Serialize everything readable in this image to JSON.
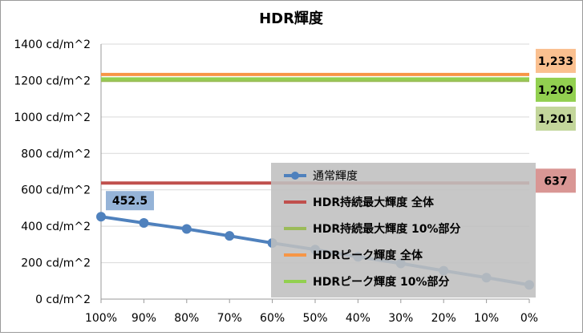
{
  "chart_data": {
    "type": "line",
    "title": "HDR輝度",
    "xlabel": "",
    "ylabel": "",
    "categories": [
      "100%",
      "90%",
      "80%",
      "70%",
      "60%",
      "50%",
      "40%",
      "30%",
      "20%",
      "10%",
      "0%"
    ],
    "y_ticks": [
      "0 cd/m^2",
      "200 cd/m^2",
      "400 cd/m^2",
      "600 cd/m^2",
      "800 cd/m^2",
      "1000 cd/m^2",
      "1200 cd/m^2",
      "1400 cd/m^2"
    ],
    "ylim": [
      0,
      1400
    ],
    "grid": true,
    "legend_position": "bottom-right",
    "series": [
      {
        "name": "通常輝度",
        "color": "#4f81bd",
        "marker": "circle",
        "values": [
          452.5,
          418,
          385,
          347,
          308,
          272,
          232,
          196,
          156,
          118,
          78
        ],
        "data_labels": [
          {
            "index": 0,
            "text": "452.5"
          }
        ]
      },
      {
        "name": "HDR持続最大輝度 全体",
        "color": "#c0504d",
        "marker": "none",
        "constant": 637,
        "data_label": "637"
      },
      {
        "name": "HDR持続最大輝度 10%部分",
        "color": "#9bbb59",
        "marker": "none",
        "constant": 1201,
        "data_label": "1,201"
      },
      {
        "name": "HDRピーク輝度 全体",
        "color": "#f79646",
        "marker": "none",
        "constant": 1233,
        "data_label": "1,233"
      },
      {
        "name": "HDRピーク輝度 10%部分",
        "color": "#92d050",
        "marker": "none",
        "constant": 1209,
        "data_label": "1,209"
      }
    ]
  }
}
